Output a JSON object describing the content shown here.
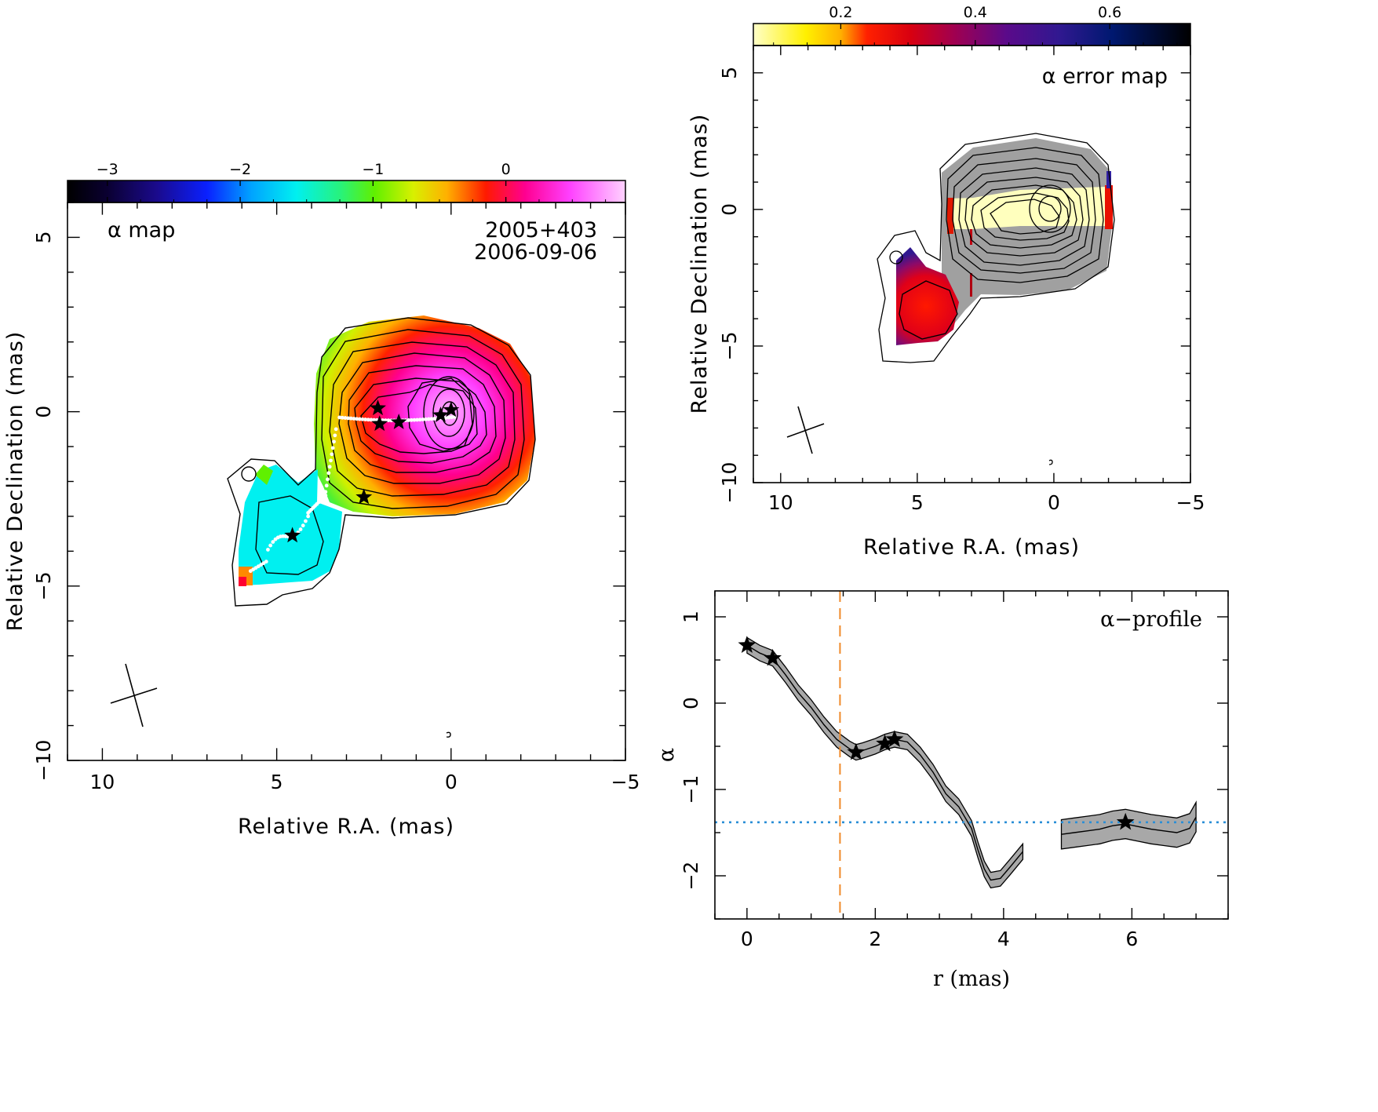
{
  "chart_data": [
    {
      "type": "heatmap",
      "title": "α map",
      "annotation": [
        "2005+403",
        "2006-09-06"
      ],
      "xlabel": "Relative R.A. (mas)",
      "ylabel": "Relative Declination (mas)",
      "xlim": [
        11,
        -5
      ],
      "ylim": [
        -10,
        6
      ],
      "xticks": [
        10,
        5,
        0,
        -5
      ],
      "yticks": [
        5,
        0,
        -5,
        -10
      ],
      "colorbar": {
        "range": [
          -3.3,
          0.9
        ],
        "ticks": [
          -3,
          -2,
          -1,
          0
        ],
        "palette": "rainbow"
      },
      "stars": [
        [
          0,
          0.05
        ],
        [
          0.3,
          -0.1
        ],
        [
          1.5,
          -0.3
        ],
        [
          2.05,
          -0.35
        ],
        [
          2.1,
          0.1
        ],
        [
          2.5,
          -2.45
        ],
        [
          4.55,
          -3.55
        ]
      ],
      "ridge_line": "white dotted",
      "contours": "black"
    },
    {
      "type": "heatmap",
      "title": "α error map",
      "xlabel": "Relative R.A. (mas)",
      "ylabel": "Relative Declination (mas)",
      "xlim": [
        11,
        -5
      ],
      "ylim": [
        -10,
        6
      ],
      "xticks": [
        10,
        5,
        0,
        -5
      ],
      "yticks": [
        5,
        0,
        -5,
        -10
      ],
      "colorbar": {
        "range": [
          0.07,
          0.72
        ],
        "ticks": [
          0.2,
          0.4,
          0.6
        ],
        "palette": "heat"
      },
      "contours": "black"
    },
    {
      "type": "line",
      "title": "α−profile",
      "xlabel": "r (mas)",
      "ylabel": "α",
      "xlim": [
        -0.5,
        7.5
      ],
      "ylim": [
        -2.5,
        1.3
      ],
      "xticks": [
        0,
        2,
        4,
        6
      ],
      "yticks": [
        1,
        0,
        -1,
        -2
      ],
      "series": [
        {
          "segment": 1,
          "x": [
            0,
            0.2,
            0.4,
            0.6,
            0.8,
            1.0,
            1.2,
            1.4,
            1.6,
            1.7,
            1.8,
            2.0,
            2.15,
            2.3,
            2.5,
            2.7,
            2.9,
            3.1,
            3.3,
            3.5,
            3.6,
            3.7,
            3.8,
            3.95,
            4.1,
            4.3
          ],
          "values": [
            0.67,
            0.58,
            0.52,
            0.33,
            0.12,
            -0.05,
            -0.25,
            -0.42,
            -0.53,
            -0.57,
            -0.55,
            -0.5,
            -0.45,
            -0.42,
            -0.45,
            -0.6,
            -0.8,
            -1.05,
            -1.2,
            -1.45,
            -1.7,
            -1.92,
            -2.05,
            -2.03,
            -1.9,
            -1.72
          ],
          "error": 0.09
        },
        {
          "segment": 2,
          "x": [
            4.9,
            5.1,
            5.3,
            5.5,
            5.7,
            5.9,
            6.1,
            6.3,
            6.5,
            6.7,
            6.9,
            7.0
          ],
          "values": [
            -1.52,
            -1.5,
            -1.48,
            -1.46,
            -1.42,
            -1.4,
            -1.43,
            -1.46,
            -1.48,
            -1.5,
            -1.45,
            -1.32
          ],
          "error": 0.17
        }
      ],
      "stars": [
        [
          0,
          0.67
        ],
        [
          0.4,
          0.52
        ],
        [
          1.7,
          -0.57
        ],
        [
          2.15,
          -0.47
        ],
        [
          2.3,
          -0.42
        ],
        [
          5.9,
          -1.38
        ]
      ],
      "vline": {
        "x": 1.45,
        "color": "#f08a2a",
        "style": "dashed"
      },
      "hline": {
        "y": -1.38,
        "color": "#2b8fd6",
        "style": "dotted"
      }
    }
  ]
}
